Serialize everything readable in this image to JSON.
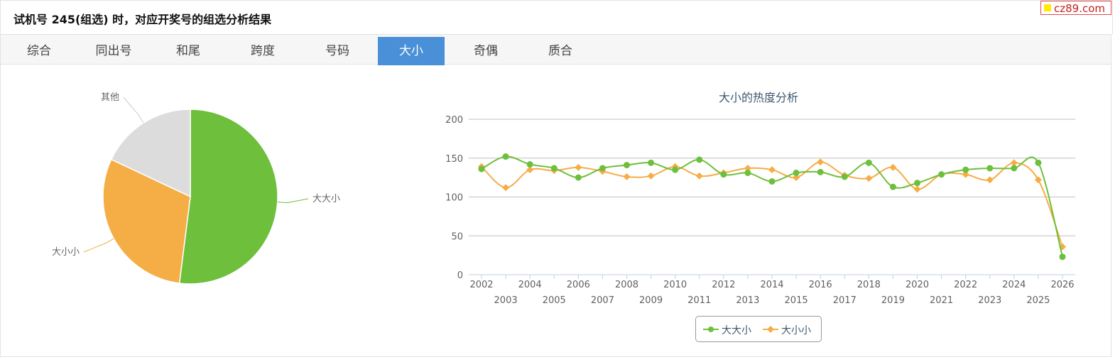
{
  "header": {
    "title": "试机号 245(组选) 时，对应开奖号的组选分析结果"
  },
  "brand": {
    "text": "cz89.com"
  },
  "tabs": [
    {
      "label": "综合"
    },
    {
      "label": "同出号"
    },
    {
      "label": "和尾"
    },
    {
      "label": "跨度"
    },
    {
      "label": "号码"
    },
    {
      "label": "大小",
      "active": true
    },
    {
      "label": "奇偶"
    },
    {
      "label": "质合"
    }
  ],
  "colors": {
    "green": "#6ebf3c",
    "orange": "#f5ad46",
    "grey": "#dcdcdc",
    "active_tab": "#4a90d8",
    "title_text": "#3e576f"
  },
  "chart_data": [
    {
      "type": "pie",
      "title": "",
      "labels": [
        "大大小",
        "大小小",
        "其他"
      ],
      "values": [
        52,
        30,
        18
      ],
      "colors": [
        "#6ebf3c",
        "#f5ad46",
        "#dcdcdc"
      ],
      "note": "slice sizes estimated from the picture"
    },
    {
      "type": "line",
      "title": "大小的热度分析",
      "x": [
        "2002",
        "2003",
        "2004",
        "2005",
        "2006",
        "2007",
        "2008",
        "2009",
        "2010",
        "2011",
        "2012",
        "2013",
        "2014",
        "2015",
        "2016",
        "2017",
        "2018",
        "2019",
        "2020",
        "2021",
        "2022",
        "2023",
        "2024",
        "2025",
        "2026"
      ],
      "ylim": [
        0,
        200
      ],
      "yticks": [
        0,
        50,
        100,
        150,
        200
      ],
      "grid": true,
      "legend": "bottom-center",
      "series": [
        {
          "name": "大大小",
          "color": "#6ebf3c",
          "marker": "circle",
          "values": [
            136,
            152,
            142,
            137,
            125,
            137,
            141,
            144,
            135,
            148,
            129,
            131,
            120,
            131,
            132,
            126,
            144,
            113,
            118,
            129,
            135,
            137,
            137,
            144,
            23
          ]
        },
        {
          "name": "大小小",
          "color": "#f5ad46",
          "marker": "diamond",
          "values": [
            139,
            112,
            135,
            134,
            138,
            133,
            126,
            127,
            139,
            127,
            131,
            137,
            135,
            125,
            145,
            128,
            124,
            138,
            110,
            129,
            129,
            122,
            144,
            122,
            36
          ]
        }
      ]
    }
  ]
}
